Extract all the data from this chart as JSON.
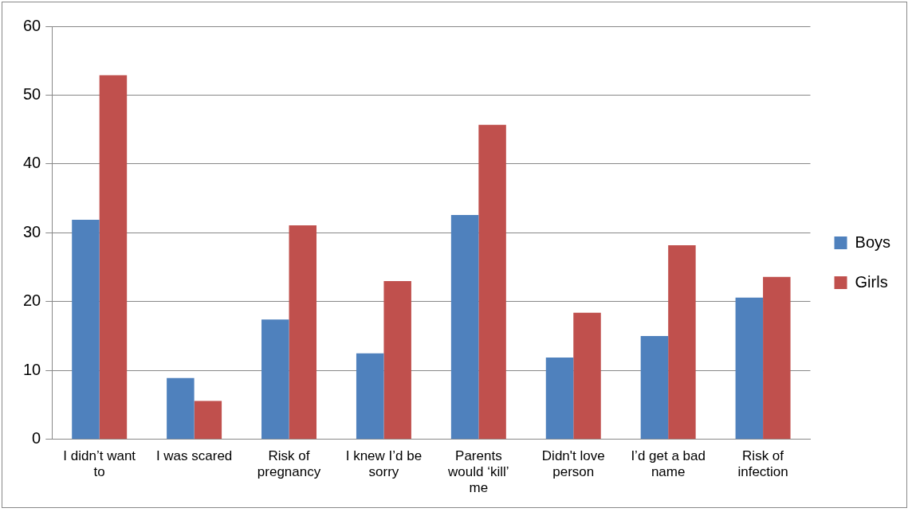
{
  "chart_data": {
    "type": "bar",
    "categories": [
      "I didn’t want to",
      "I was scared",
      "Risk of pregnancy",
      "I knew I’d be sorry",
      "Parents would ‘kill’ me",
      "Didn't love person",
      "I’d get a bad name",
      "Risk of infection"
    ],
    "series": [
      {
        "name": "Boys",
        "color": "#4f81bd",
        "values": [
          31.9,
          8.9,
          17.4,
          12.5,
          32.6,
          11.9,
          15.0,
          20.6
        ]
      },
      {
        "name": "Girls",
        "color": "#c0504d",
        "values": [
          52.9,
          5.6,
          31.1,
          23.0,
          45.7,
          18.4,
          28.2,
          23.6
        ]
      }
    ],
    "ylim": [
      0,
      60
    ],
    "yticks": [
      0,
      10,
      20,
      30,
      40,
      50,
      60
    ],
    "grid": "y",
    "legend": "right"
  }
}
